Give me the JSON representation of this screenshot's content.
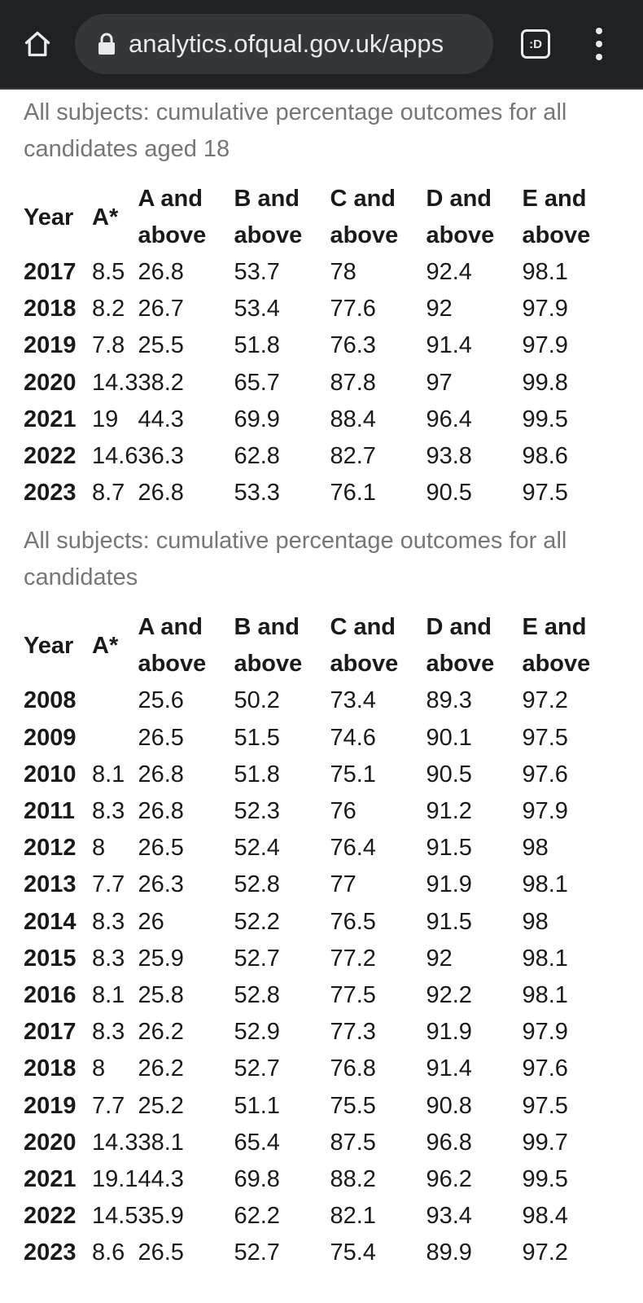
{
  "browser": {
    "url": "analytics.ofqual.gov.uk/apps",
    "tabs_label": ":D",
    "icons": {
      "home": "home-icon",
      "lock": "lock-icon",
      "tabs": "tabs-icon",
      "menu": "more-vert-icon"
    }
  },
  "tables": [
    {
      "caption": "All subjects: cumulative percentage outcomes for all candidates aged 18",
      "headers": [
        "Year",
        "A*",
        "A and above",
        "B and above",
        "C and above",
        "D and above",
        "E and above"
      ],
      "rows": [
        [
          "2017",
          "8.5",
          "26.8",
          "53.7",
          "78",
          "92.4",
          "98.1"
        ],
        [
          "2018",
          "8.2",
          "26.7",
          "53.4",
          "77.6",
          "92",
          "97.9"
        ],
        [
          "2019",
          "7.8",
          "25.5",
          "51.8",
          "76.3",
          "91.4",
          "97.9"
        ],
        [
          "2020",
          "14.3",
          "38.2",
          "65.7",
          "87.8",
          "97",
          "99.8"
        ],
        [
          "2021",
          "19",
          "44.3",
          "69.9",
          "88.4",
          "96.4",
          "99.5"
        ],
        [
          "2022",
          "14.6",
          "36.3",
          "62.8",
          "82.7",
          "93.8",
          "98.6"
        ],
        [
          "2023",
          "8.7",
          "26.8",
          "53.3",
          "76.1",
          "90.5",
          "97.5"
        ]
      ]
    },
    {
      "caption": "All subjects: cumulative percentage outcomes for all candidates",
      "headers": [
        "Year",
        "A*",
        "A and above",
        "B and above",
        "C and above",
        "D and above",
        "E and above"
      ],
      "rows": [
        [
          "2008",
          "",
          "25.6",
          "50.2",
          "73.4",
          "89.3",
          "97.2"
        ],
        [
          "2009",
          "",
          "26.5",
          "51.5",
          "74.6",
          "90.1",
          "97.5"
        ],
        [
          "2010",
          "8.1",
          "26.8",
          "51.8",
          "75.1",
          "90.5",
          "97.6"
        ],
        [
          "2011",
          "8.3",
          "26.8",
          "52.3",
          "76",
          "91.2",
          "97.9"
        ],
        [
          "2012",
          "8",
          "26.5",
          "52.4",
          "76.4",
          "91.5",
          "98"
        ],
        [
          "2013",
          "7.7",
          "26.3",
          "52.8",
          "77",
          "91.9",
          "98.1"
        ],
        [
          "2014",
          "8.3",
          "26",
          "52.2",
          "76.5",
          "91.5",
          "98"
        ],
        [
          "2015",
          "8.3",
          "25.9",
          "52.7",
          "77.2",
          "92",
          "98.1"
        ],
        [
          "2016",
          "8.1",
          "25.8",
          "52.8",
          "77.5",
          "92.2",
          "98.1"
        ],
        [
          "2017",
          "8.3",
          "26.2",
          "52.9",
          "77.3",
          "91.9",
          "97.9"
        ],
        [
          "2018",
          "8",
          "26.2",
          "52.7",
          "76.8",
          "91.4",
          "97.6"
        ],
        [
          "2019",
          "7.7",
          "25.2",
          "51.1",
          "75.5",
          "90.8",
          "97.5"
        ],
        [
          "2020",
          "14.3",
          "38.1",
          "65.4",
          "87.5",
          "96.8",
          "99.7"
        ],
        [
          "2021",
          "19.1",
          "44.3",
          "69.8",
          "88.2",
          "96.2",
          "99.5"
        ],
        [
          "2022",
          "14.5",
          "35.9",
          "62.2",
          "82.1",
          "93.4",
          "98.4"
        ],
        [
          "2023",
          "8.6",
          "26.5",
          "52.7",
          "75.4",
          "89.9",
          "97.2"
        ]
      ]
    }
  ]
}
